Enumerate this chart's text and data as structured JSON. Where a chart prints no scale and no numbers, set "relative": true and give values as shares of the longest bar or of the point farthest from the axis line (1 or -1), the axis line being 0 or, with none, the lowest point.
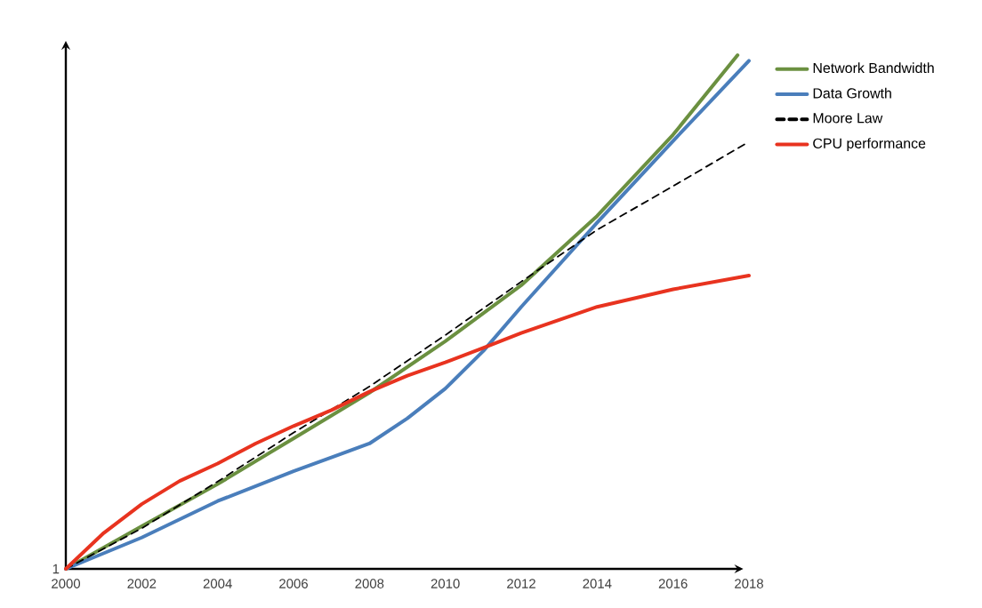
{
  "chart_data": {
    "type": "line",
    "relative": true,
    "xlim": [
      2000,
      2018
    ],
    "xticks": [
      2000,
      2002,
      2004,
      2006,
      2008,
      2010,
      2012,
      2014,
      2016,
      2018
    ],
    "legend": "right",
    "line_style": "solid",
    "marker": "none",
    "grid": false,
    "annotations": [
      "1"
    ],
    "series": [
      {
        "name": "Network Bandwidth",
        "color": "#6b9040",
        "x": [
          2000,
          2002,
          2004,
          2006,
          2008,
          2010,
          2012,
          2014,
          2016,
          2017.7
        ],
        "values": [
          0,
          0.083,
          0.165,
          0.254,
          0.343,
          0.443,
          0.552,
          0.687,
          0.845,
          1.0
        ]
      },
      {
        "name": "Data Growth",
        "color": "#4a7ebb",
        "x": [
          2000,
          2002,
          2004,
          2006,
          2008,
          2009,
          2010,
          2011,
          2012,
          2014,
          2016,
          2018
        ],
        "values": [
          0,
          0.061,
          0.132,
          0.19,
          0.244,
          0.293,
          0.351,
          0.424,
          0.51,
          0.674,
          0.833,
          0.989
        ]
      },
      {
        "name": "Moore Law",
        "color": "#000000",
        "line_style": "dashed",
        "x": [
          2000,
          2002,
          2004,
          2006,
          2008,
          2010,
          2012,
          2014,
          2016,
          2017.9
        ],
        "values": [
          0,
          0.079,
          0.17,
          0.265,
          0.355,
          0.455,
          0.559,
          0.66,
          0.745,
          0.827
        ]
      },
      {
        "name": "CPU performance",
        "color": "#e8331f",
        "x": [
          2000,
          2001,
          2002,
          2003,
          2004,
          2005,
          2006,
          2007,
          2008,
          2009,
          2010,
          2011,
          2012,
          2014,
          2016,
          2018
        ],
        "values": [
          0,
          0.07,
          0.126,
          0.171,
          0.205,
          0.244,
          0.278,
          0.309,
          0.345,
          0.376,
          0.402,
          0.43,
          0.459,
          0.51,
          0.544,
          0.571
        ]
      }
    ]
  }
}
